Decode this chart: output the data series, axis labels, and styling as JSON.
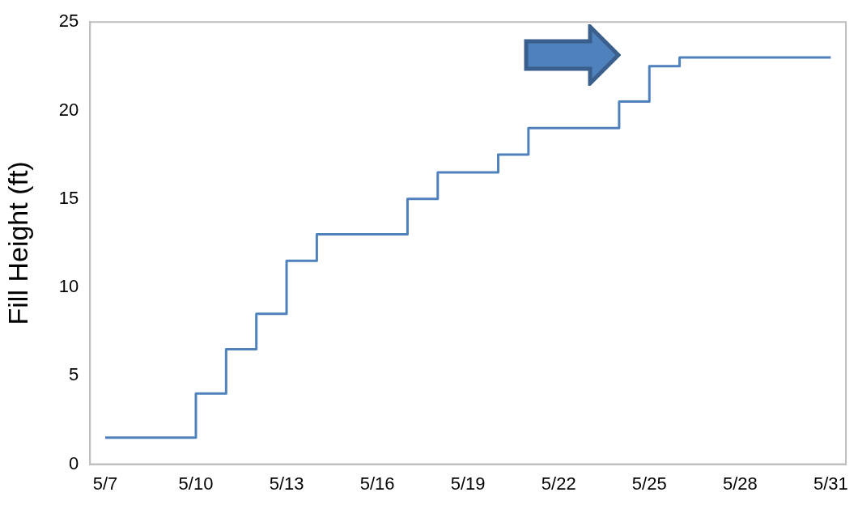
{
  "chart_data": {
    "type": "step",
    "ylabel": "Fill Height (ft)",
    "categories": [
      "5/7",
      null,
      null,
      "5/10",
      null,
      null,
      "5/13",
      null,
      null,
      "5/16",
      null,
      null,
      "5/19",
      null,
      null,
      "5/22",
      null,
      null,
      "5/25",
      null,
      null,
      "5/28",
      null,
      null,
      "5/31"
    ],
    "series": [
      {
        "color": "#4f81bd",
        "values": [
          1.5,
          1.5,
          1.5,
          4,
          6.5,
          8.5,
          11.5,
          13,
          13,
          13,
          15,
          16.5,
          16.5,
          17.5,
          19,
          19,
          19,
          20.5,
          22.5,
          23,
          23,
          23,
          23,
          23,
          23
        ]
      }
    ],
    "ylim": [
      0,
      25
    ],
    "yticks": [
      0,
      5,
      10,
      15,
      20,
      25
    ],
    "grid": false,
    "legend": false
  }
}
